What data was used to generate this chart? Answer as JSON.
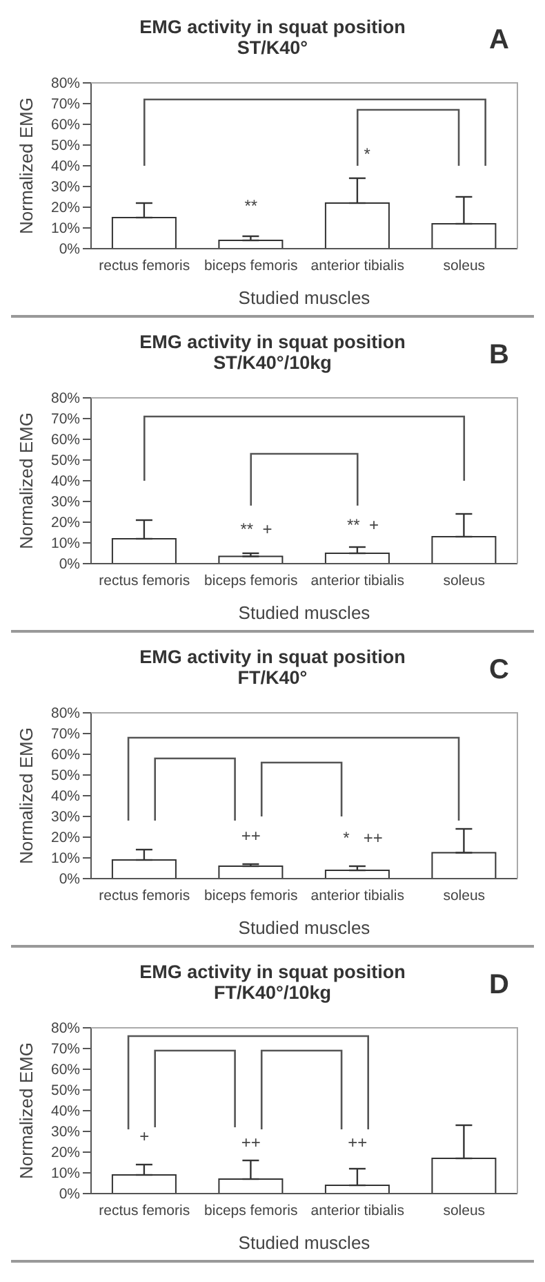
{
  "chart_data": [
    {
      "type": "bar",
      "title": "EMG activity in squat position",
      "subtitle": "ST/K40°",
      "xlabel": "Studied muscles",
      "ylabel": "Normalized EMG",
      "categories": [
        "rectus femoris",
        "biceps femoris",
        "anterior tibialis",
        "soleus"
      ],
      "values": [
        15,
        4,
        22,
        12
      ],
      "errors": [
        [
          15,
          22
        ],
        [
          4,
          6
        ],
        [
          22,
          34
        ],
        [
          12,
          25
        ]
      ],
      "color": "#ffffff",
      "ylim": [
        0,
        80
      ],
      "yticks": [
        {
          "value": 0,
          "label": "0%"
        },
        {
          "value": 10,
          "label": "10%"
        },
        {
          "value": 20,
          "label": "20%"
        },
        {
          "value": 30,
          "label": "30%"
        },
        {
          "value": 40,
          "label": "40%"
        },
        {
          "value": 50,
          "label": "50%"
        },
        {
          "value": 60,
          "label": "60%"
        },
        {
          "value": 70,
          "label": "70%"
        },
        {
          "value": 80,
          "label": "80%"
        }
      ],
      "grid": false,
      "legend": false,
      "annotations": [
        "A",
        "**",
        "*"
      ]
    },
    {
      "type": "bar",
      "title": "EMG activity in squat position",
      "subtitle": "ST/K40°/10kg",
      "xlabel": "Studied muscles",
      "ylabel": "Normalized EMG",
      "categories": [
        "rectus femoris",
        "biceps femoris",
        "anterior tibialis",
        "soleus"
      ],
      "values": [
        12,
        3.5,
        5,
        13
      ],
      "errors": [
        [
          12,
          21
        ],
        [
          3.5,
          5
        ],
        [
          5,
          8
        ],
        [
          13,
          24
        ]
      ],
      "color": "#ffffff",
      "ylim": [
        0,
        80
      ],
      "yticks": [
        {
          "value": 0,
          "label": "0%"
        },
        {
          "value": 10,
          "label": "10%"
        },
        {
          "value": 20,
          "label": "20%"
        },
        {
          "value": 30,
          "label": "30%"
        },
        {
          "value": 40,
          "label": "40%"
        },
        {
          "value": 50,
          "label": "50%"
        },
        {
          "value": 60,
          "label": "60%"
        },
        {
          "value": 70,
          "label": "70%"
        },
        {
          "value": 80,
          "label": "80%"
        }
      ],
      "grid": false,
      "legend": false,
      "annotations": [
        "B",
        "**  +",
        "**  +"
      ]
    },
    {
      "type": "bar",
      "title": "EMG activity in squat position",
      "subtitle": "FT/K40°",
      "xlabel": "Studied muscles",
      "ylabel": "Normalized EMG",
      "categories": [
        "rectus femoris",
        "biceps femoris",
        "anterior tibialis",
        "soleus"
      ],
      "values": [
        9,
        6,
        4,
        12.5
      ],
      "errors": [
        [
          9,
          14
        ],
        [
          6,
          7
        ],
        [
          4,
          6
        ],
        [
          12.5,
          24
        ]
      ],
      "color": "#ffffff",
      "ylim": [
        0,
        80
      ],
      "yticks": [
        {
          "value": 0,
          "label": "0%"
        },
        {
          "value": 10,
          "label": "10%"
        },
        {
          "value": 20,
          "label": "20%"
        },
        {
          "value": 30,
          "label": "30%"
        },
        {
          "value": 40,
          "label": "40%"
        },
        {
          "value": 50,
          "label": "50%"
        },
        {
          "value": 60,
          "label": "60%"
        },
        {
          "value": 70,
          "label": "70%"
        },
        {
          "value": 80,
          "label": "80%"
        }
      ],
      "grid": false,
      "legend": false,
      "annotations": [
        "C",
        "++",
        "*   ++"
      ]
    },
    {
      "type": "bar",
      "title": "EMG activity in squat position",
      "subtitle": "FT/K40°/10kg",
      "xlabel": "Studied muscles",
      "ylabel": "Normalized EMG",
      "categories": [
        "rectus femoris",
        "biceps femoris",
        "anterior tibialis",
        "soleus"
      ],
      "values": [
        9,
        7,
        4,
        17
      ],
      "errors": [
        [
          9,
          14
        ],
        [
          7,
          16
        ],
        [
          4,
          12
        ],
        [
          17,
          33
        ]
      ],
      "color": "#ffffff",
      "ylim": [
        0,
        80
      ],
      "yticks": [
        {
          "value": 0,
          "label": "0%"
        },
        {
          "value": 10,
          "label": "10%"
        },
        {
          "value": 20,
          "label": "20%"
        },
        {
          "value": 30,
          "label": "30%"
        },
        {
          "value": 40,
          "label": "40%"
        },
        {
          "value": 50,
          "label": "50%"
        },
        {
          "value": 60,
          "label": "60%"
        },
        {
          "value": 70,
          "label": "70%"
        },
        {
          "value": 80,
          "label": "80%"
        }
      ],
      "grid": false,
      "legend": false,
      "annotations": [
        "D",
        "+",
        "++",
        "++"
      ]
    }
  ]
}
